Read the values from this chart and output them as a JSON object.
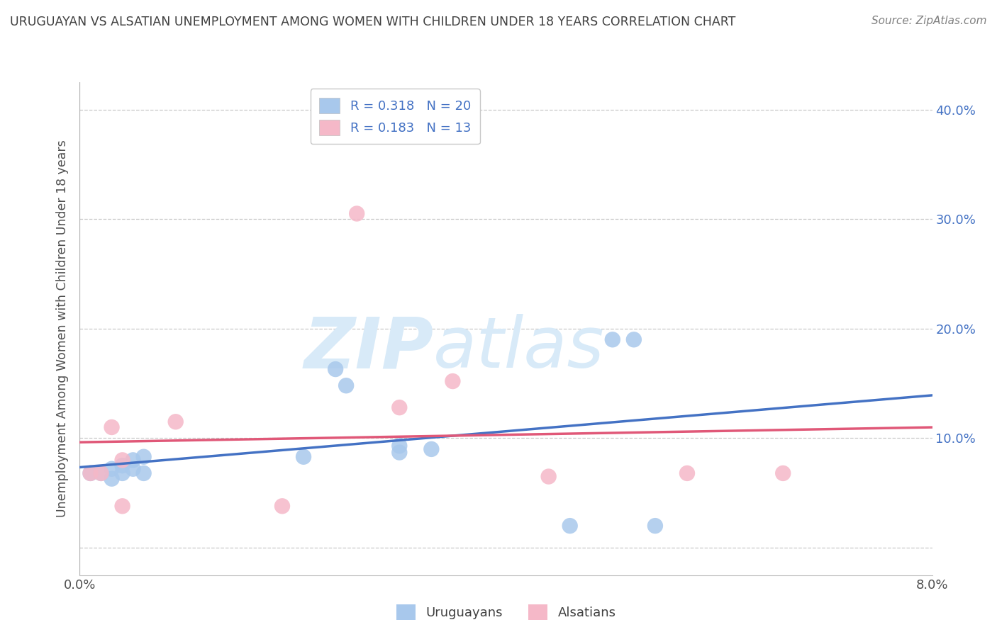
{
  "title": "URUGUAYAN VS ALSATIAN UNEMPLOYMENT AMONG WOMEN WITH CHILDREN UNDER 18 YEARS CORRELATION CHART",
  "source": "Source: ZipAtlas.com",
  "ylabel": "Unemployment Among Women with Children Under 18 years",
  "legend_label1": "Uruguayans",
  "legend_label2": "Alsatians",
  "R1": "0.318",
  "N1": "20",
  "R2": "0.183",
  "N2": "13",
  "xlim": [
    0.0,
    0.08
  ],
  "ylim": [
    -0.025,
    0.425
  ],
  "yticks": [
    0.0,
    0.1,
    0.2,
    0.3,
    0.4
  ],
  "ytick_labels": [
    "",
    "10.0%",
    "20.0%",
    "30.0%",
    "40.0%"
  ],
  "xtick_labels": [
    "0.0%",
    "8.0%"
  ],
  "color_blue": "#A8C8EC",
  "color_pink": "#F5B8C8",
  "line_blue": "#4472C4",
  "line_pink": "#E05878",
  "watermark_color": "#D8EAF8",
  "uruguayan_x": [
    0.001,
    0.002,
    0.003,
    0.003,
    0.004,
    0.004,
    0.005,
    0.005,
    0.006,
    0.006,
    0.021,
    0.024,
    0.025,
    0.03,
    0.03,
    0.033,
    0.046,
    0.05,
    0.052,
    0.054
  ],
  "uruguayan_y": [
    0.068,
    0.068,
    0.063,
    0.072,
    0.068,
    0.075,
    0.072,
    0.08,
    0.068,
    0.083,
    0.083,
    0.163,
    0.148,
    0.087,
    0.093,
    0.09,
    0.02,
    0.19,
    0.19,
    0.02
  ],
  "alsatian_x": [
    0.001,
    0.002,
    0.003,
    0.004,
    0.004,
    0.009,
    0.019,
    0.026,
    0.03,
    0.035,
    0.044,
    0.057,
    0.066
  ],
  "alsatian_y": [
    0.068,
    0.068,
    0.11,
    0.038,
    0.08,
    0.115,
    0.038,
    0.305,
    0.128,
    0.152,
    0.065,
    0.068,
    0.068
  ]
}
